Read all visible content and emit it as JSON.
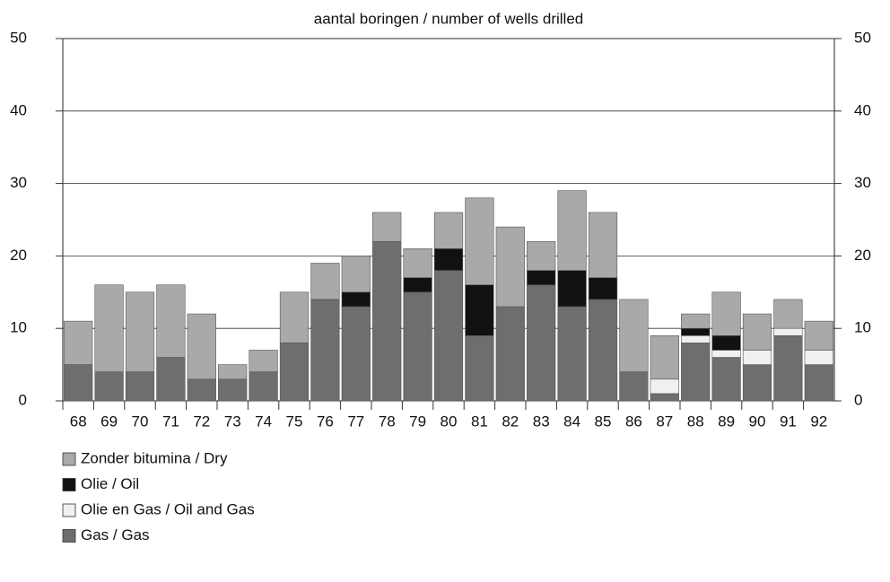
{
  "chart_data": {
    "type": "stacked-bar",
    "title": "aantal boringen / number of wells drilled",
    "categories": [
      "68",
      "69",
      "70",
      "71",
      "72",
      "73",
      "74",
      "75",
      "76",
      "77",
      "78",
      "79",
      "80",
      "81",
      "82",
      "83",
      "84",
      "85",
      "86",
      "87",
      "88",
      "89",
      "90",
      "91",
      "92"
    ],
    "series": [
      {
        "name": "Zonder bitumina / Dry",
        "color": "#a9a9a9",
        "values": [
          6,
          12,
          11,
          10,
          9,
          2,
          3,
          7,
          5,
          5,
          4,
          4,
          5,
          12,
          11,
          4,
          11,
          9,
          10,
          6,
          2,
          6,
          5,
          4,
          4
        ]
      },
      {
        "name": "Olie / Oil",
        "color": "#111111",
        "values": [
          0,
          0,
          0,
          0,
          0,
          0,
          0,
          0,
          0,
          2,
          0,
          2,
          3,
          7,
          0,
          2,
          5,
          3,
          0,
          0,
          1,
          2,
          0,
          0,
          0
        ]
      },
      {
        "name": "Olie en Gas / Oil and Gas",
        "color": "#f0f0f0",
        "values": [
          0,
          0,
          0,
          0,
          0,
          0,
          0,
          0,
          0,
          0,
          0,
          0,
          0,
          0,
          0,
          0,
          0,
          0,
          0,
          2,
          1,
          1,
          2,
          1,
          2
        ]
      },
      {
        "name": "Gas / Gas",
        "color": "#6e6e6e",
        "values": [
          5,
          4,
          4,
          6,
          3,
          3,
          4,
          8,
          14,
          13,
          22,
          15,
          18,
          9,
          13,
          16,
          13,
          14,
          4,
          1,
          8,
          6,
          5,
          9,
          5
        ]
      }
    ],
    "ylim": [
      0,
      50
    ],
    "yticks": [
      0,
      10,
      20,
      30,
      40,
      50
    ],
    "grid": true
  }
}
